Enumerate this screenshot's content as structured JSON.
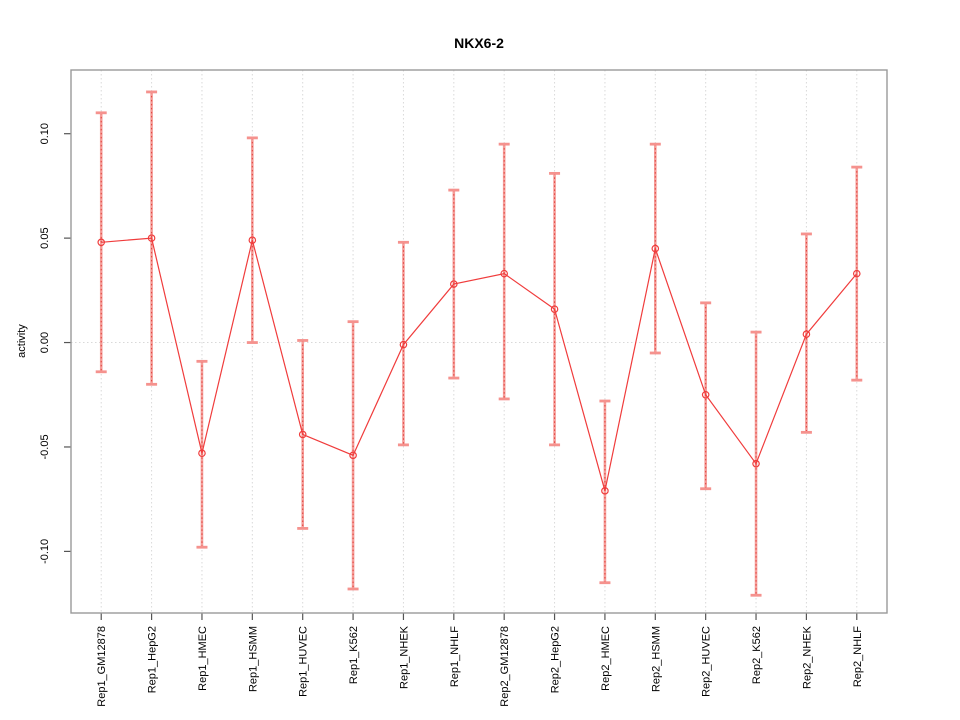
{
  "chart_data": {
    "type": "line",
    "title": "NKX6-2",
    "xlabel": "",
    "ylabel": "activity",
    "categories": [
      "Rep1_GM12878",
      "Rep1_HepG2",
      "Rep1_HMEC",
      "Rep1_HSMM",
      "Rep1_HUVEC",
      "Rep1_K562",
      "Rep1_NHEK",
      "Rep1_NHLF",
      "Rep2_GM12878",
      "Rep2_HepG2",
      "Rep2_HMEC",
      "Rep2_HSMM",
      "Rep2_HUVEC",
      "Rep2_K562",
      "Rep2_NHEK",
      "Rep2_NHLF"
    ],
    "series": [
      {
        "name": "activity",
        "values": [
          0.048,
          0.05,
          -0.053,
          0.049,
          -0.044,
          -0.054,
          -0.001,
          0.028,
          0.033,
          0.016,
          -0.071,
          0.045,
          -0.025,
          -0.058,
          0.004,
          0.033
        ],
        "ci_upper": [
          0.11,
          0.12,
          -0.009,
          0.098,
          0.001,
          0.01,
          0.048,
          0.073,
          0.095,
          0.081,
          -0.028,
          0.095,
          0.019,
          0.005,
          0.052,
          0.084
        ],
        "ci_lower": [
          -0.014,
          -0.02,
          -0.098,
          0.0,
          -0.089,
          -0.118,
          -0.049,
          -0.017,
          -0.027,
          -0.049,
          -0.115,
          -0.005,
          -0.07,
          -0.121,
          -0.043,
          -0.018
        ]
      }
    ],
    "ylim": [
      -0.1295,
      0.1305
    ],
    "yticks": [
      {
        "value": -0.1,
        "label": "-0.10"
      },
      {
        "value": -0.05,
        "label": "-0.05"
      },
      {
        "value": 0.0,
        "label": "0.00"
      },
      {
        "value": 0.05,
        "label": "0.05"
      },
      {
        "value": 0.1,
        "label": "0.10"
      }
    ],
    "grid": {
      "vertical_at_each_category": true,
      "horizontal_at_zero": true,
      "style": "dotted"
    },
    "legend": {
      "shown": false
    },
    "marker": "open-circle",
    "colors": {
      "line": "#f03c3c",
      "marker": "#f03c3c",
      "error_bar": "#f59e9a",
      "error_bar_dotted_overlay": "#e0403a",
      "error_bar_cap": "#f5928e",
      "grid": "#d9d9d9",
      "box": "#999999",
      "tick": "#555555",
      "text": "#000000",
      "background": "#ffffff"
    }
  }
}
